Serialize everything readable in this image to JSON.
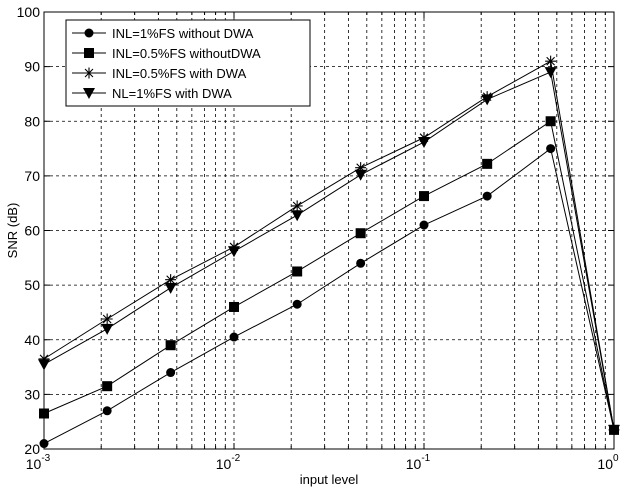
{
  "chart_data": {
    "type": "line",
    "title": "",
    "xlabel": "input level",
    "ylabel": "SNR (dB)",
    "xscale": "log",
    "xlim": [
      0.001,
      1
    ],
    "ylim": [
      20,
      100
    ],
    "grid": true,
    "legend_position": "top-left",
    "x_ticks": [
      {
        "base": "10",
        "exp": "-3"
      },
      {
        "base": "10",
        "exp": "-2"
      },
      {
        "base": "10",
        "exp": "-1"
      },
      {
        "base": "10",
        "exp": "0"
      }
    ],
    "y_ticks": [
      "20",
      "30",
      "40",
      "50",
      "60",
      "70",
      "80",
      "90",
      "100"
    ],
    "x": [
      0.001,
      0.00215,
      0.00464,
      0.01,
      0.0215,
      0.0464,
      0.1,
      0.215,
      0.464,
      1
    ],
    "series": [
      {
        "name": "INL=1%FS without DWA",
        "marker": "circle",
        "values": [
          21,
          27,
          34,
          40.5,
          46.5,
          54,
          61,
          66.3,
          75,
          23.5
        ]
      },
      {
        "name": "INL=0.5%FS withoutDWA",
        "marker": "square",
        "values": [
          26.5,
          31.5,
          39,
          46,
          52.5,
          59.5,
          66.3,
          72.2,
          80,
          23.5
        ]
      },
      {
        "name": "INL=0.5%FS with DWA",
        "marker": "star",
        "values": [
          36.5,
          43.8,
          51,
          57,
          64.5,
          71.5,
          77,
          84.5,
          91,
          23.5
        ]
      },
      {
        "name": "NL=1%FS with DWA",
        "marker": "triangle-down",
        "values": [
          35.5,
          42,
          49.5,
          56.2,
          62.8,
          70.2,
          76.2,
          84,
          89,
          23.5
        ]
      }
    ]
  }
}
